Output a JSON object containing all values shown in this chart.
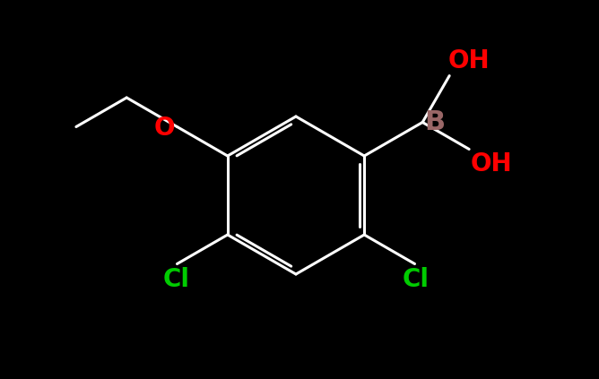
{
  "background_color": "#000000",
  "line_color": "#ffffff",
  "atom_colors": {
    "O": "#ff0000",
    "B": "#996666",
    "Cl": "#00cc00",
    "C": "#ffffff"
  },
  "line_width": 2.2,
  "font_size": 20
}
